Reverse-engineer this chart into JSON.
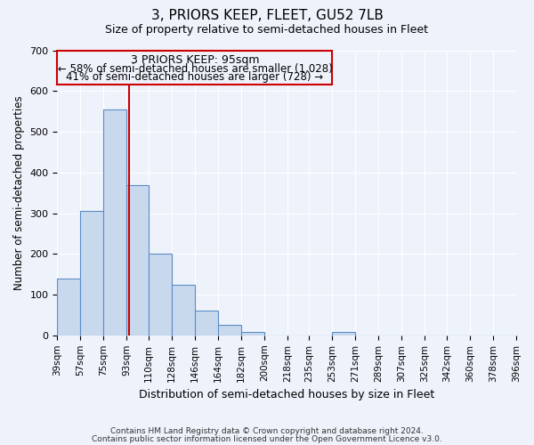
{
  "title": "3, PRIORS KEEP, FLEET, GU52 7LB",
  "subtitle": "Size of property relative to semi-detached houses in Fleet",
  "xlabel": "Distribution of semi-detached houses by size in Fleet",
  "ylabel": "Number of semi-detached properties",
  "footer_line1": "Contains HM Land Registry data © Crown copyright and database right 2024.",
  "footer_line2": "Contains public sector information licensed under the Open Government Licence v3.0.",
  "annotation_title": "3 PRIORS KEEP: 95sqm",
  "annotation_line1": "← 58% of semi-detached houses are smaller (1,028)",
  "annotation_line2": "41% of semi-detached houses are larger (728) →",
  "bar_edges": [
    39,
    57,
    75,
    93,
    110,
    128,
    146,
    164,
    182,
    200,
    218,
    235,
    253,
    271,
    289,
    307,
    325,
    342,
    360,
    378,
    396
  ],
  "bar_heights": [
    140,
    305,
    555,
    370,
    200,
    125,
    60,
    25,
    8,
    0,
    0,
    0,
    8,
    0,
    0,
    0,
    0,
    0,
    0,
    0
  ],
  "property_value": 95,
  "bar_color": "#c9d9ed",
  "bar_edge_color": "#5b8dc8",
  "vline_color": "#cc0000",
  "annotation_box_color": "#cc0000",
  "background_color": "#eef2fb",
  "ylim": [
    0,
    700
  ],
  "yticks": [
    0,
    100,
    200,
    300,
    400,
    500,
    600,
    700
  ],
  "tick_labels": [
    "39sqm",
    "57sqm",
    "75sqm",
    "93sqm",
    "110sqm",
    "128sqm",
    "146sqm",
    "164sqm",
    "182sqm",
    "200sqm",
    "218sqm",
    "235sqm",
    "253sqm",
    "271sqm",
    "289sqm",
    "307sqm",
    "325sqm",
    "342sqm",
    "360sqm",
    "378sqm",
    "396sqm"
  ]
}
